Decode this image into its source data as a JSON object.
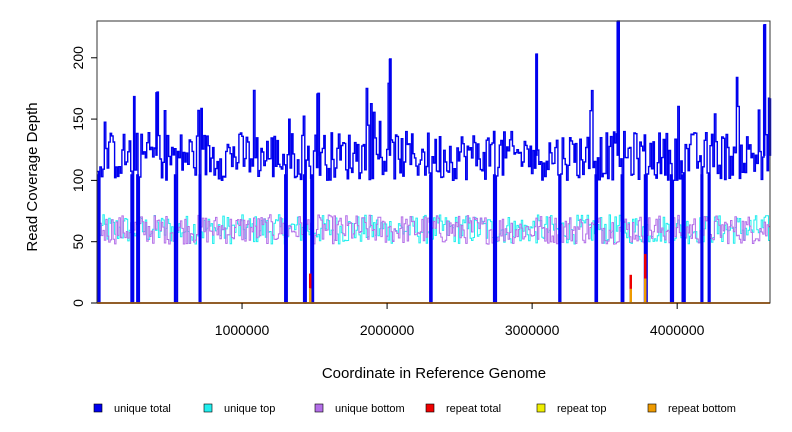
{
  "chart_data": {
    "type": "line",
    "title": "",
    "xlabel": "Coordinate in Reference Genome",
    "ylabel": "Read Coverage Depth",
    "xlim": [
      0,
      4640000
    ],
    "ylim": [
      0,
      230
    ],
    "xticks": [
      1000000,
      2000000,
      3000000,
      4000000
    ],
    "xtick_labels": [
      "1000000",
      "2000000",
      "3000000",
      "4000000"
    ],
    "yticks": [
      0,
      50,
      100,
      150,
      200
    ],
    "ytick_labels": [
      "0",
      "50",
      "100",
      "150",
      "200"
    ],
    "grid": false,
    "legend_position": "bottom",
    "colors": {
      "unique_total": "#0000ee",
      "unique_top": "#22eeee",
      "unique_bottom": "#b36ee8",
      "repeat_total": "#ee0000",
      "repeat_top": "#eeee00",
      "repeat_bottom": "#ee9a00"
    },
    "legend": [
      {
        "label": "unique total",
        "color": "#0000ee"
      },
      {
        "label": "unique top",
        "color": "#22eeee"
      },
      {
        "label": "unique bottom",
        "color": "#b36ee8"
      },
      {
        "label": "repeat total",
        "color": "#ee0000"
      },
      {
        "label": "repeat top",
        "color": "#eeee00"
      },
      {
        "label": "repeat bottom",
        "color": "#ee9a00"
      }
    ],
    "typical_levels": {
      "unique_total": 120,
      "unique_top": 60,
      "unique_bottom": 60,
      "repeat_total": 0,
      "repeat_top": 0,
      "repeat_bottom": 0
    },
    "series": [
      {
        "name": "unique total",
        "x": [
          0,
          100000,
          200000,
          300000,
          400000,
          500000,
          600000,
          700000,
          800000,
          900000,
          1000000,
          1100000,
          1200000,
          1300000,
          1400000,
          1500000,
          1600000,
          1700000,
          1800000,
          1900000,
          2000000,
          2100000,
          2200000,
          2300000,
          2400000,
          2500000,
          2600000,
          2700000,
          2800000,
          2900000,
          3000000,
          3100000,
          3200000,
          3300000,
          3400000,
          3500000,
          3600000,
          3700000,
          3800000,
          3900000,
          4000000,
          4100000,
          4200000,
          4300000,
          4400000,
          4500000,
          4600000
        ],
        "values": [
          108,
          130,
          125,
          118,
          140,
          122,
          115,
          128,
          120,
          125,
          118,
          112,
          125,
          119,
          120,
          130,
          115,
          110,
          125,
          120,
          128,
          118,
          125,
          112,
          110,
          120,
          128,
          115,
          125,
          132,
          120,
          118,
          122,
          115,
          130,
          120,
          115,
          118,
          124,
          120,
          125,
          110,
          120,
          118,
          128,
          125,
          120
        ]
      },
      {
        "name": "unique top",
        "x": [
          0,
          200000,
          400000,
          600000,
          800000,
          1000000,
          1200000,
          1400000,
          1600000,
          1800000,
          2000000,
          2200000,
          2400000,
          2600000,
          2800000,
          3000000,
          3200000,
          3400000,
          3600000,
          3800000,
          4000000,
          4200000,
          4400000,
          4600000
        ],
        "values": [
          58,
          62,
          60,
          57,
          61,
          59,
          63,
          60,
          58,
          62,
          60,
          57,
          61,
          59,
          62,
          60,
          58,
          61,
          60,
          59,
          62,
          60,
          58,
          61
        ]
      },
      {
        "name": "unique bottom",
        "x": [
          0,
          200000,
          400000,
          600000,
          800000,
          1000000,
          1200000,
          1400000,
          1600000,
          1800000,
          2000000,
          2200000,
          2400000,
          2600000,
          2800000,
          3000000,
          3200000,
          3400000,
          3600000,
          3800000,
          4000000,
          4200000,
          4400000,
          4600000
        ],
        "values": [
          60,
          58,
          61,
          62,
          59,
          61,
          57,
          60,
          62,
          58,
          60,
          63,
          59,
          61,
          58,
          60,
          62,
          59,
          60,
          61,
          58,
          60,
          62,
          59
        ]
      },
      {
        "name": "repeat total",
        "x": [
          0,
          4640000
        ],
        "values": [
          0,
          0
        ]
      },
      {
        "name": "repeat top",
        "x": [
          0,
          4640000
        ],
        "values": [
          0,
          0
        ]
      },
      {
        "name": "repeat bottom",
        "x": [
          0,
          4640000
        ],
        "values": [
          0,
          0
        ]
      }
    ],
    "notable_points": [
      {
        "series": "unique total",
        "x": 410000,
        "y": 172
      },
      {
        "series": "unique total",
        "x": 1520000,
        "y": 171
      },
      {
        "series": "unique total",
        "x": 2020000,
        "y": 199
      },
      {
        "series": "unique total",
        "x": 3030000,
        "y": 203
      },
      {
        "series": "unique total",
        "x": 3590000,
        "y": 230
      },
      {
        "series": "unique total",
        "x": 4600000,
        "y": 227
      },
      {
        "series": "unique total",
        "x": 4640000,
        "y": 167
      }
    ],
    "dropouts_x": [
      10000,
      240000,
      280000,
      540000,
      710000,
      1300000,
      1430000,
      1480000,
      2300000,
      2740000,
      3190000,
      3440000,
      3620000,
      3780000,
      3960000,
      4040000,
      4170000,
      4220000
    ],
    "repeat_spikes": [
      {
        "x": 1470000,
        "y": 24
      },
      {
        "x": 3680000,
        "y": 23
      },
      {
        "x": 3780000,
        "y": 40
      }
    ]
  }
}
